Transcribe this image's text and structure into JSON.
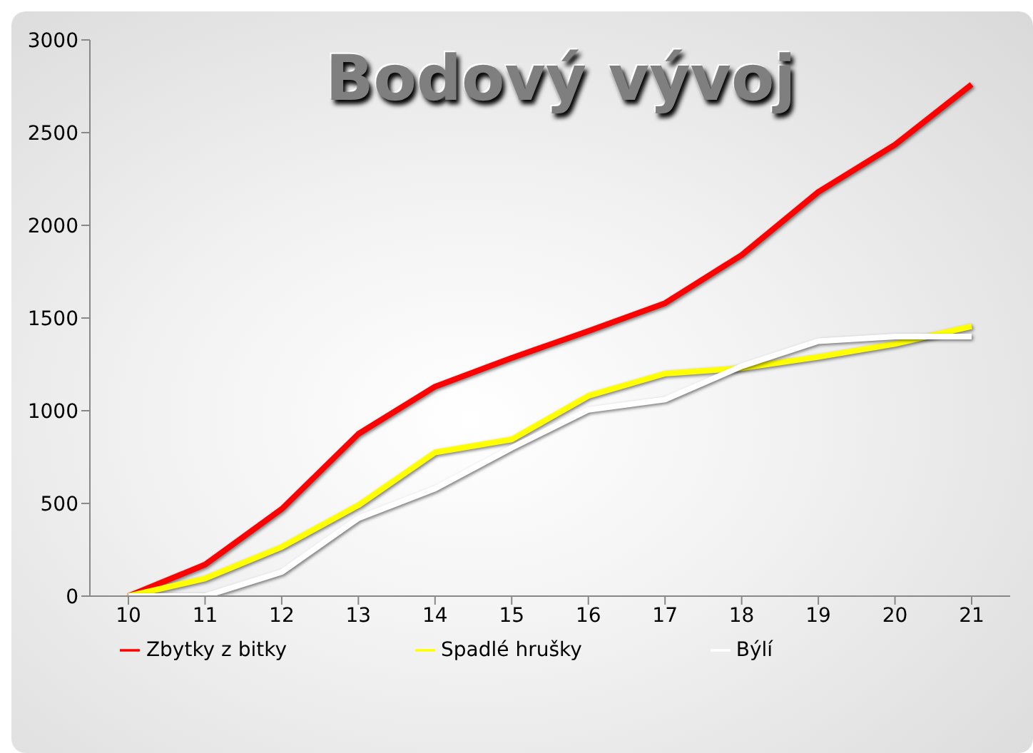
{
  "chart_data": {
    "type": "line",
    "title": "Bodový vývoj",
    "categories": [
      "10",
      "11",
      "12",
      "13",
      "14",
      "15",
      "16",
      "17",
      "18",
      "19",
      "20",
      "21"
    ],
    "series": [
      {
        "name": "Zbytky z bitky",
        "color": "#ff0000",
        "values": [
          0,
          170,
          470,
          875,
          1130,
          1285,
          1430,
          1580,
          1840,
          2180,
          2435,
          2760
        ]
      },
      {
        "name": "Spadlé hrušky",
        "color": "#ffff00",
        "values": [
          0,
          95,
          265,
          490,
          775,
          845,
          1080,
          1200,
          1230,
          1290,
          1360,
          1455
        ]
      },
      {
        "name": "Býlí",
        "color": "#ffffff",
        "values": [
          0,
          0,
          130,
          420,
          580,
          800,
          1005,
          1060,
          1240,
          1375,
          1400,
          1400
        ]
      }
    ],
    "ylim": [
      0,
      3000
    ],
    "yticks": [
      0,
      500,
      1000,
      1500,
      2000,
      2500,
      3000
    ],
    "grid": false,
    "legend": "bottom",
    "marker": "none",
    "line_style": "solid"
  }
}
